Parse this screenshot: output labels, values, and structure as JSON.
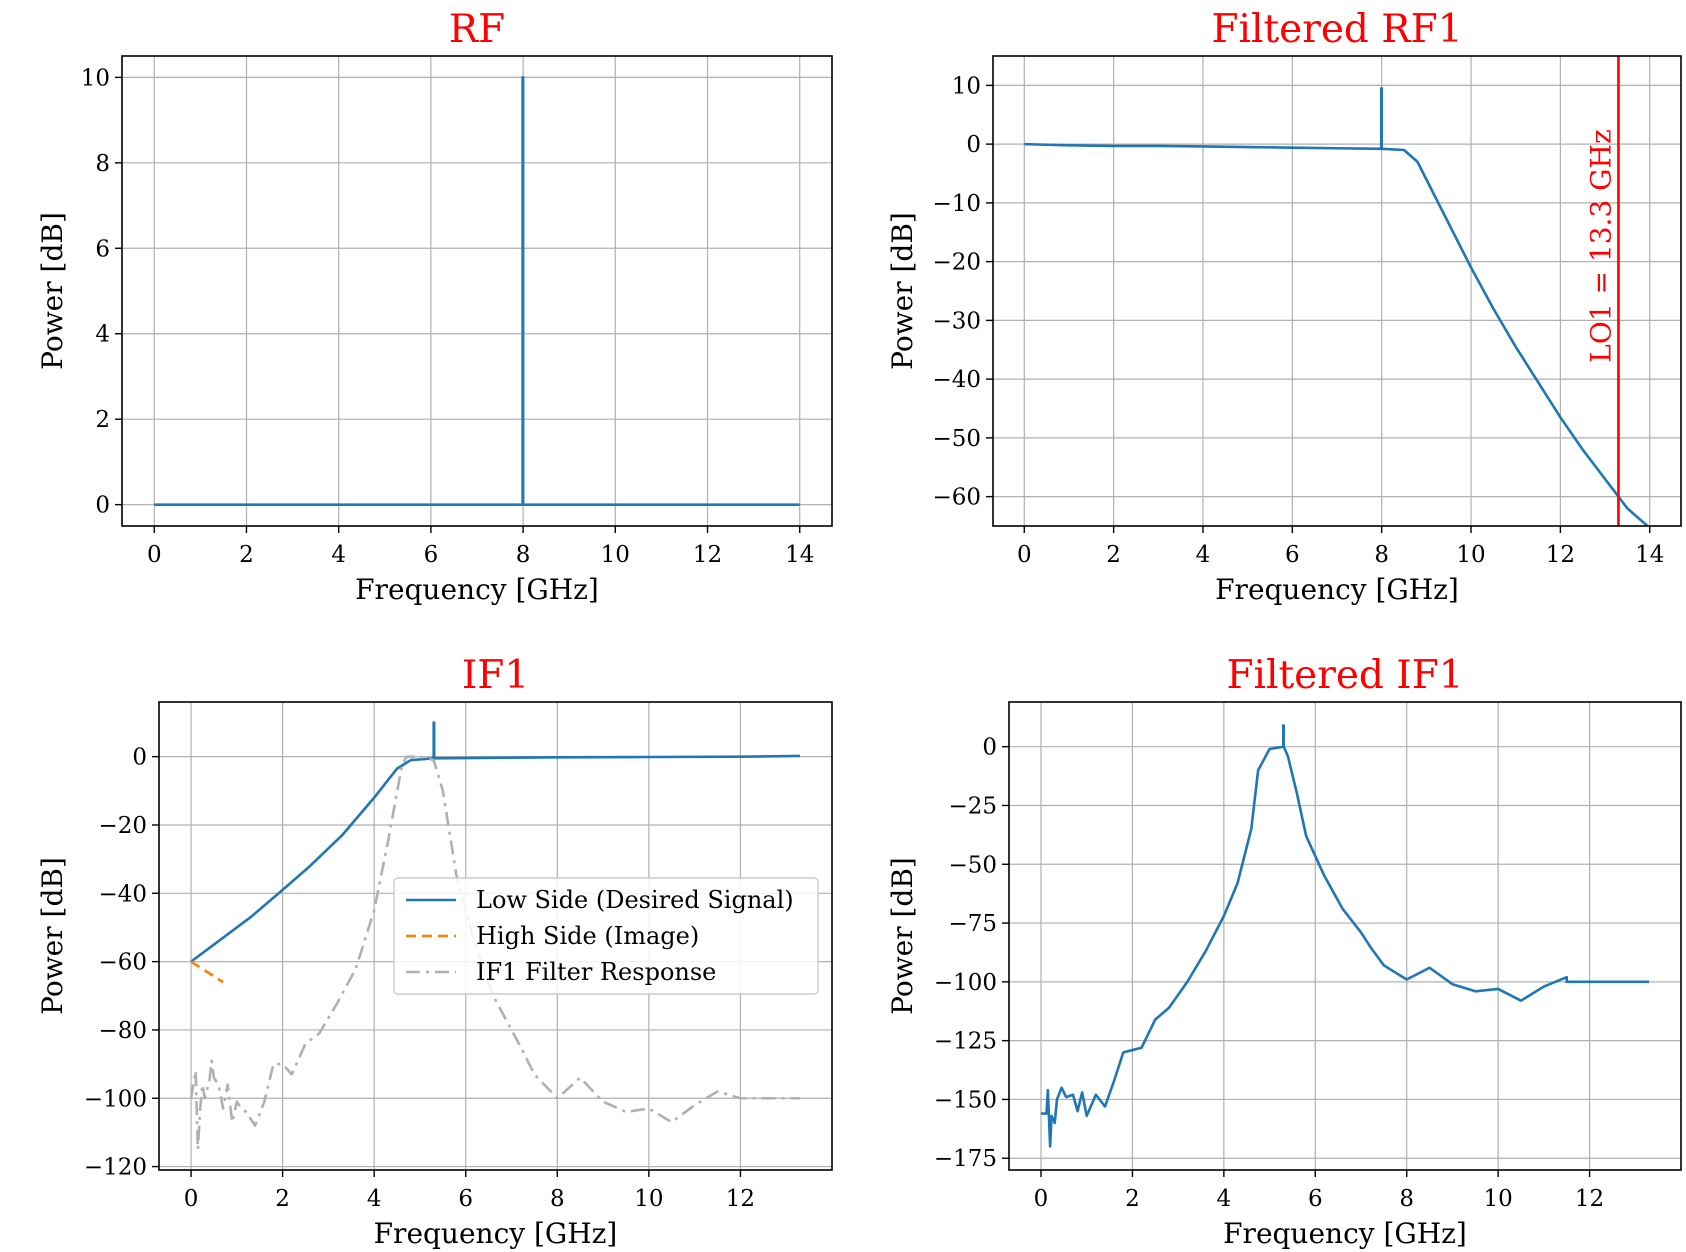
{
  "chart_data": [
    {
      "type": "line",
      "title": "RF",
      "xlabel": "Frequency [GHz]",
      "ylabel": "Power [dB]",
      "xlim": [
        -0.7,
        14.7
      ],
      "ylim": [
        -0.5,
        10.5
      ],
      "xticks": [
        0,
        2,
        4,
        6,
        8,
        10,
        12,
        14
      ],
      "yticks": [
        0,
        2,
        4,
        6,
        8,
        10
      ],
      "xtick_labels": [
        "0",
        "2",
        "4",
        "6",
        "8",
        "10",
        "12",
        "14"
      ],
      "ytick_labels": [
        "0",
        "2",
        "4",
        "6",
        "8",
        "10"
      ],
      "grid": true,
      "series": [
        {
          "color": "#1f77b4",
          "style": "solid",
          "x": [
            0,
            7.99,
            7.99,
            8.0,
            8.0,
            14
          ],
          "y": [
            0,
            0,
            10,
            10,
            0,
            0
          ]
        }
      ]
    },
    {
      "type": "line",
      "title": "Filtered RF1",
      "xlabel": "Frequency [GHz]",
      "ylabel": "Power [dB]",
      "xlim": [
        -0.7,
        14.7
      ],
      "ylim": [
        -65,
        15
      ],
      "xticks": [
        0,
        2,
        4,
        6,
        8,
        10,
        12,
        14
      ],
      "yticks": [
        10,
        0,
        -10,
        -20,
        -30,
        -40,
        -50,
        -60
      ],
      "xtick_labels": [
        "0",
        "2",
        "4",
        "6",
        "8",
        "10",
        "12",
        "14"
      ],
      "ytick_labels": [
        "10",
        "0",
        "−10",
        "−20",
        "−30",
        "−40",
        "−50",
        "−60"
      ],
      "grid": true,
      "series": [
        {
          "color": "#1f77b4",
          "style": "solid",
          "x": [
            0,
            1,
            2,
            3,
            4,
            5,
            6,
            7,
            7.99,
            7.99,
            8.0,
            8.0,
            8.5,
            8.8,
            9.2,
            9.6,
            10,
            10.5,
            11,
            11.5,
            12,
            12.5,
            13,
            13.5,
            13.95
          ],
          "y": [
            0,
            -0.2,
            -0.3,
            -0.3,
            -0.4,
            -0.5,
            -0.6,
            -0.7,
            -0.8,
            9.5,
            9.5,
            -0.8,
            -1.0,
            -3.0,
            -9,
            -15,
            -21,
            -28,
            -34.5,
            -40.5,
            -46.5,
            -52,
            -57,
            -62,
            -65
          ]
        }
      ],
      "vline": {
        "x": 13.3,
        "color": "#ff0000",
        "label": "LO1 = 13.3 GHz"
      }
    },
    {
      "type": "line",
      "title": "IF1",
      "xlabel": "Frequency [GHz]",
      "ylabel": "Power [dB]",
      "xlim": [
        -0.7,
        14.0
      ],
      "ylim": [
        -121,
        16
      ],
      "xticks": [
        0,
        2,
        4,
        6,
        8,
        10,
        12
      ],
      "yticks": [
        0,
        -20,
        -40,
        -60,
        -80,
        -100,
        -120
      ],
      "xtick_labels": [
        "0",
        "2",
        "4",
        "6",
        "8",
        "10",
        "12"
      ],
      "ytick_labels": [
        "0",
        "−20",
        "−40",
        "−60",
        "−80",
        "−100",
        "−120"
      ],
      "grid": true,
      "legend_position": "center-right",
      "series": [
        {
          "name": "Low Side (Desired Signal)",
          "color": "#1f77b4",
          "style": "solid",
          "x": [
            0,
            0.5,
            1.3,
            2.0,
            2.6,
            3.3,
            4.0,
            4.5,
            4.8,
            5.3,
            5.3,
            5.31,
            5.31,
            6,
            8,
            10,
            12,
            13.3
          ],
          "y": [
            -60,
            -55,
            -47,
            -39,
            -32,
            -23,
            -12,
            -3.5,
            -1,
            -0.5,
            10,
            10,
            -0.5,
            -0.4,
            -0.2,
            -0.1,
            0,
            0.2
          ]
        },
        {
          "name": "High Side (Image)",
          "color": "#ff7f0e",
          "style": "dashed",
          "x": [
            0,
            0.7
          ],
          "y": [
            -60,
            -66
          ]
        },
        {
          "name": "IF1 Filter Response",
          "color": "#b0b0b0",
          "style": "dashdot",
          "x": [
            0,
            0.1,
            0.15,
            0.2,
            0.25,
            0.3,
            0.4,
            0.45,
            0.5,
            0.6,
            0.7,
            0.8,
            0.9,
            1.0,
            1.1,
            1.2,
            1.4,
            1.6,
            1.8,
            2.0,
            2.2,
            2.5,
            2.8,
            3.2,
            3.6,
            4.0,
            4.3,
            4.6,
            4.7,
            5.0,
            5.3,
            5.5,
            5.8,
            6.2,
            6.6,
            7.0,
            7.2,
            7.5,
            8.0,
            8.5,
            9.0,
            9.5,
            10.0,
            10.5,
            11.0,
            11.5,
            12.0,
            12.5,
            13.0,
            13.3
          ],
          "y": [
            -100,
            -92,
            -115,
            -103,
            -96,
            -100,
            -95,
            -89,
            -94,
            -96,
            -103,
            -96,
            -107,
            -101,
            -103,
            -104,
            -108,
            -101,
            -90,
            -90,
            -93,
            -84,
            -81,
            -72,
            -62,
            -45,
            -25,
            -3,
            0,
            0,
            -1,
            -10,
            -35,
            -55,
            -70,
            -80,
            -85,
            -93,
            -100,
            -94,
            -101,
            -104,
            -103,
            -107,
            -102,
            -98,
            -100,
            -100,
            -100,
            -100
          ]
        }
      ],
      "legend": [
        {
          "label": "Low Side (Desired Signal)",
          "color": "#1f77b4",
          "style": "solid"
        },
        {
          "label": "High Side (Image)",
          "color": "#ff7f0e",
          "style": "dashed"
        },
        {
          "label": "IF1 Filter Response",
          "color": "#b0b0b0",
          "style": "dashdot"
        }
      ]
    },
    {
      "type": "line",
      "title": "Filtered IF1",
      "xlabel": "Frequency [GHz]",
      "ylabel": "Power [dB]",
      "xlim": [
        -0.7,
        14.0
      ],
      "ylim": [
        -180,
        19
      ],
      "xticks": [
        0,
        2,
        4,
        6,
        8,
        10,
        12
      ],
      "yticks": [
        0,
        -25,
        -50,
        -75,
        -100,
        -125,
        -150,
        -175
      ],
      "xtick_labels": [
        "0",
        "2",
        "4",
        "6",
        "8",
        "10",
        "12"
      ],
      "ytick_labels": [
        "0",
        "−25",
        "−50",
        "−75",
        "−100",
        "−125",
        "−150",
        "−175"
      ],
      "grid": true,
      "series": [
        {
          "color": "#1f77b4",
          "style": "solid",
          "x": [
            0,
            0.12,
            0.15,
            0.2,
            0.23,
            0.3,
            0.35,
            0.45,
            0.55,
            0.7,
            0.8,
            0.9,
            1.0,
            1.2,
            1.4,
            1.6,
            1.8,
            2.0,
            2.2,
            2.5,
            2.8,
            3.2,
            3.6,
            4.0,
            4.3,
            4.6,
            4.75,
            5.0,
            5.3,
            5.3,
            5.31,
            5.31,
            5.4,
            5.6,
            5.8,
            6.2,
            6.6,
            7.0,
            7.2,
            7.5,
            8.0,
            8.5,
            9.0,
            9.5,
            10.0,
            10.5,
            11.0,
            11.5,
            11.5,
            12.0,
            12.5,
            13.0,
            13.3
          ],
          "y": [
            -156,
            -156,
            -146,
            -170,
            -157,
            -160,
            -150,
            -145,
            -149,
            -148,
            -155,
            -147,
            -157,
            -148,
            -153,
            -142,
            -130,
            -129,
            -128,
            -116,
            -111,
            -100,
            -87,
            -72,
            -58,
            -35,
            -10,
            -1,
            0,
            9,
            9,
            0,
            -4,
            -20,
            -38,
            -55,
            -69,
            -79,
            -85,
            -93,
            -99,
            -94,
            -101,
            -104,
            -103,
            -108,
            -102,
            -98,
            -100,
            -100,
            -100,
            -100,
            -100
          ]
        }
      ]
    }
  ]
}
